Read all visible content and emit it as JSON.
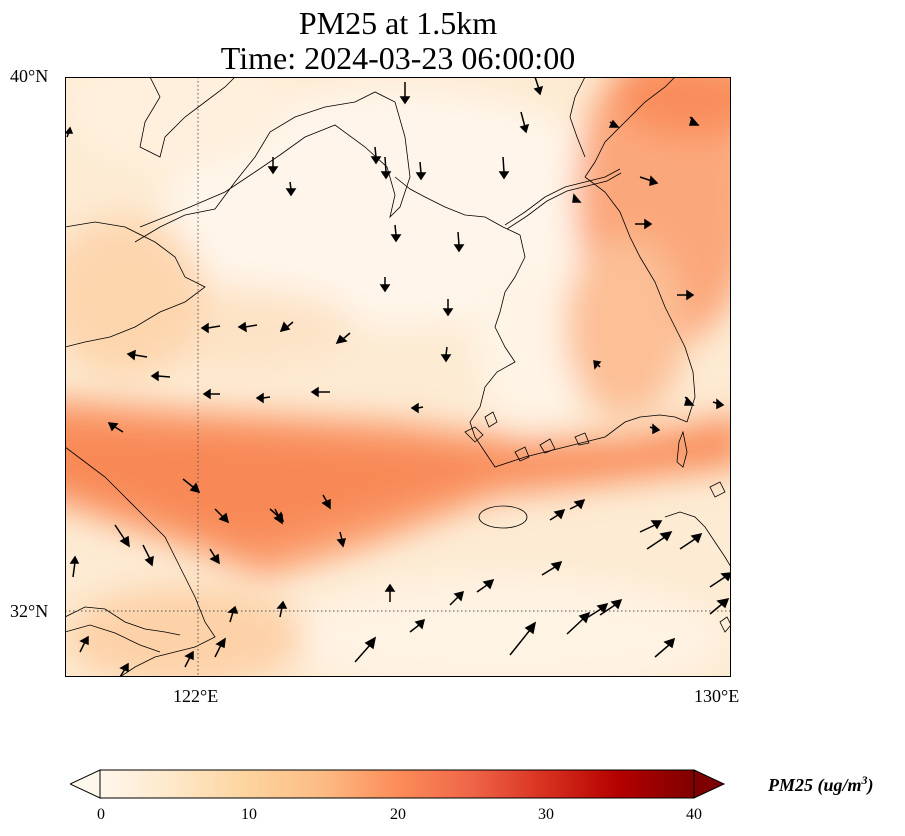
{
  "title": {
    "line1": "PM25 at 1.5km",
    "line2": "Time: 2024-03-23 06:00:00"
  },
  "axes": {
    "lat_labels": [
      "40°N",
      "32°N"
    ],
    "lon_labels": [
      "122°E",
      "130°E"
    ],
    "extent": {
      "lon": [
        120,
        130
      ],
      "lat": [
        31,
        40
      ]
    },
    "gridlines": {
      "lon": [
        122
      ],
      "lat": [
        32
      ],
      "style": "dotted"
    }
  },
  "colorbar": {
    "label": "PM25 (ug/m",
    "label_sup": "3",
    "label_close": ")",
    "ticks": [
      "0",
      "10",
      "20",
      "30",
      "40"
    ],
    "range": [
      0,
      40
    ],
    "colormap": "OrRd",
    "colors": [
      "#fff7ec",
      "#fee8c8",
      "#fdd49e",
      "#fdbb84",
      "#fc8d59",
      "#ef6548",
      "#d7301f",
      "#b30000",
      "#7f0000"
    ],
    "extend": "both"
  },
  "map_colors": {
    "land_line": "#000000",
    "arrow": "#000000"
  }
}
